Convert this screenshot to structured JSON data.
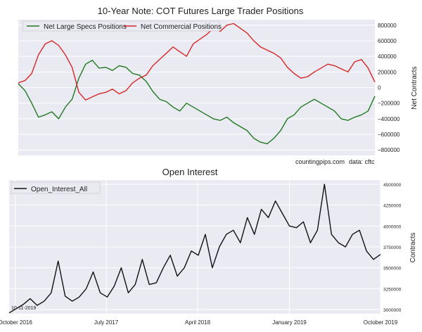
{
  "chart_data": [
    {
      "type": "line",
      "title": "10-Year Note: COT Futures Large Trader Positions",
      "ylabel": "Net Contracts",
      "ylim": [
        -870000,
        870000
      ],
      "yticks": [
        -800000,
        -600000,
        -400000,
        -200000,
        0,
        200000,
        400000,
        600000,
        800000
      ],
      "ytick_labels": [
        "−800000",
        "−600000",
        "−400000",
        "−200000",
        "0",
        "200000",
        "400000",
        "600000",
        "800000"
      ],
      "grid": true,
      "legend": "top-left",
      "annotations": {
        "source": "countingpips.com",
        "data": "data: cftc"
      },
      "series": [
        {
          "name": "Net Large Specs Positions",
          "color": "#1f7a1f",
          "x": [
            "2016-09-13",
            "2016-10-04",
            "2016-10-25",
            "2016-11-15",
            "2016-12-06",
            "2016-12-27",
            "2017-01-17",
            "2017-02-07",
            "2017-02-28",
            "2017-03-21",
            "2017-04-11",
            "2017-05-02",
            "2017-05-23",
            "2017-06-13",
            "2017-07-04",
            "2017-07-25",
            "2017-08-15",
            "2017-09-05",
            "2017-09-26",
            "2017-10-17",
            "2017-11-07",
            "2017-11-28",
            "2017-12-19",
            "2018-01-09",
            "2018-01-30",
            "2018-02-20",
            "2018-03-13",
            "2018-04-03",
            "2018-04-24",
            "2018-05-15",
            "2018-06-05",
            "2018-06-26",
            "2018-07-17",
            "2018-08-07",
            "2018-08-28",
            "2018-09-18",
            "2018-10-09",
            "2018-10-30",
            "2018-11-20",
            "2018-12-11",
            "2019-01-01",
            "2019-01-22",
            "2019-02-12",
            "2019-03-05",
            "2019-03-26",
            "2019-04-16",
            "2019-05-07",
            "2019-05-28",
            "2019-06-18",
            "2019-07-09",
            "2019-07-30",
            "2019-08-20",
            "2019-09-10",
            "2019-10-01"
          ],
          "values": [
            50000,
            -40000,
            -200000,
            -380000,
            -350000,
            -310000,
            -400000,
            -250000,
            -150000,
            120000,
            300000,
            350000,
            250000,
            260000,
            220000,
            280000,
            260000,
            180000,
            160000,
            80000,
            -50000,
            -150000,
            -180000,
            -250000,
            -300000,
            -200000,
            -250000,
            -300000,
            -350000,
            -400000,
            -420000,
            -380000,
            -450000,
            -500000,
            -550000,
            -650000,
            -700000,
            -720000,
            -650000,
            -550000,
            -400000,
            -350000,
            -250000,
            -200000,
            -150000,
            -200000,
            -250000,
            -300000,
            -400000,
            -420000,
            -380000,
            -350000,
            -300000,
            -110000
          ]
        },
        {
          "name": "Net Commercial Positions",
          "color": "#d62728",
          "x": [
            "2016-09-13",
            "2016-10-04",
            "2016-10-25",
            "2016-11-15",
            "2016-12-06",
            "2016-12-27",
            "2017-01-17",
            "2017-02-07",
            "2017-02-28",
            "2017-03-21",
            "2017-04-11",
            "2017-05-02",
            "2017-05-23",
            "2017-06-13",
            "2017-07-04",
            "2017-07-25",
            "2017-08-15",
            "2017-09-05",
            "2017-09-26",
            "2017-10-17",
            "2017-11-07",
            "2017-11-28",
            "2017-12-19",
            "2018-01-09",
            "2018-01-30",
            "2018-02-20",
            "2018-03-13",
            "2018-04-03",
            "2018-04-24",
            "2018-05-15",
            "2018-06-05",
            "2018-06-26",
            "2018-07-17",
            "2018-08-07",
            "2018-08-28",
            "2018-09-18",
            "2018-10-09",
            "2018-10-30",
            "2018-11-20",
            "2018-12-11",
            "2019-01-01",
            "2019-01-22",
            "2019-02-12",
            "2019-03-05",
            "2019-03-26",
            "2019-04-16",
            "2019-05-07",
            "2019-05-28",
            "2019-06-18",
            "2019-07-09",
            "2019-07-30",
            "2019-08-20",
            "2019-09-10",
            "2019-10-01"
          ],
          "values": [
            60000,
            90000,
            180000,
            420000,
            560000,
            600000,
            540000,
            420000,
            260000,
            -60000,
            -160000,
            -120000,
            -80000,
            -60000,
            -20000,
            -80000,
            -40000,
            60000,
            120000,
            160000,
            280000,
            360000,
            440000,
            520000,
            460000,
            400000,
            560000,
            620000,
            680000,
            760000,
            720000,
            800000,
            820000,
            760000,
            700000,
            600000,
            520000,
            480000,
            440000,
            380000,
            260000,
            180000,
            120000,
            140000,
            200000,
            250000,
            300000,
            280000,
            240000,
            200000,
            330000,
            360000,
            250000,
            70000
          ]
        }
      ]
    },
    {
      "type": "line",
      "title": "Open Interest",
      "ylabel": "Contracts",
      "ylim": [
        2950000,
        4550000
      ],
      "yticks": [
        3000000,
        3250000,
        3500000,
        3750000,
        4000000,
        4250000,
        4500000
      ],
      "grid": true,
      "legend": "top-left",
      "annotations": {
        "date": "10-11-2019"
      },
      "xtick_labels": [
        "October 2016",
        "July 2017",
        "April 2018",
        "January 2019",
        "October 2019"
      ],
      "series": [
        {
          "name": "Open_Interest_All",
          "color": "#111111",
          "x": [
            "2016-09-13",
            "2016-10-04",
            "2016-10-25",
            "2016-11-15",
            "2016-12-06",
            "2016-12-27",
            "2017-01-17",
            "2017-02-07",
            "2017-02-28",
            "2017-03-21",
            "2017-04-11",
            "2017-05-02",
            "2017-05-23",
            "2017-06-13",
            "2017-07-04",
            "2017-07-25",
            "2017-08-15",
            "2017-09-05",
            "2017-09-26",
            "2017-10-17",
            "2017-11-07",
            "2017-11-28",
            "2017-12-19",
            "2018-01-09",
            "2018-01-30",
            "2018-02-20",
            "2018-03-13",
            "2018-04-03",
            "2018-04-24",
            "2018-05-15",
            "2018-06-05",
            "2018-06-26",
            "2018-07-17",
            "2018-08-07",
            "2018-08-28",
            "2018-09-18",
            "2018-10-09",
            "2018-10-30",
            "2018-11-20",
            "2018-12-11",
            "2019-01-01",
            "2019-01-22",
            "2019-02-12",
            "2019-03-05",
            "2019-03-26",
            "2019-04-16",
            "2019-05-07",
            "2019-05-28",
            "2019-06-18",
            "2019-07-09",
            "2019-07-30",
            "2019-08-20",
            "2019-09-10",
            "2019-10-01"
          ],
          "values": [
            2960000,
            3010000,
            3060000,
            3130000,
            3050000,
            3100000,
            3200000,
            3580000,
            3160000,
            3100000,
            3150000,
            3250000,
            3450000,
            3200000,
            3150000,
            3280000,
            3500000,
            3200000,
            3300000,
            3600000,
            3300000,
            3320000,
            3500000,
            3650000,
            3400000,
            3500000,
            3700000,
            3650000,
            3900000,
            3500000,
            3750000,
            3900000,
            3950000,
            3800000,
            4100000,
            3900000,
            4200000,
            4100000,
            4300000,
            4150000,
            4000000,
            3980000,
            4050000,
            3800000,
            3950000,
            4500000,
            3900000,
            3800000,
            3750000,
            3900000,
            3950000,
            3700000,
            3600000,
            3660000
          ]
        }
      ]
    }
  ]
}
